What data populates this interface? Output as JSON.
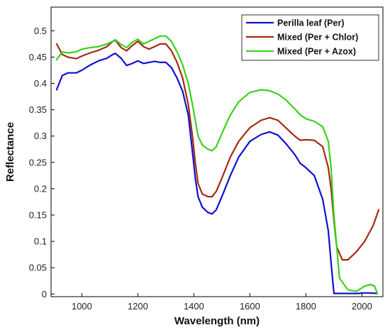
{
  "chart_data": {
    "type": "line",
    "title": "",
    "xlabel": "Wavelength (nm)",
    "ylabel": "Reflectance",
    "xlim": [
      890,
      2075
    ],
    "ylim": [
      -0.005,
      0.545
    ],
    "xticks": [
      1000,
      1200,
      1400,
      1600,
      1800,
      2000
    ],
    "yticks": [
      0,
      0.05,
      0.1,
      0.15,
      0.2,
      0.25,
      0.3,
      0.35,
      0.4,
      0.45,
      0.5
    ],
    "ytick_labels": [
      "0",
      "0.05",
      "0.1",
      "0.15",
      "0.2",
      "0.25",
      "0.3",
      "0.35",
      "0.4",
      "0.45",
      "0.5"
    ],
    "grid": false,
    "legend_position": "top-right",
    "series": [
      {
        "name": "Perilla leaf (Per)",
        "color": "#1010d0",
        "x": [
          910,
          930,
          950,
          980,
          1000,
          1030,
          1060,
          1090,
          1110,
          1120,
          1140,
          1160,
          1180,
          1200,
          1220,
          1240,
          1260,
          1280,
          1300,
          1320,
          1340,
          1360,
          1380,
          1395,
          1405,
          1415,
          1430,
          1450,
          1465,
          1480,
          1500,
          1530,
          1560,
          1600,
          1640,
          1670,
          1700,
          1730,
          1760,
          1780,
          1800,
          1830,
          1860,
          1880,
          1890,
          1900,
          1930,
          1960,
          1990,
          2000,
          2030,
          2055
        ],
        "y": [
          0.388,
          0.415,
          0.42,
          0.42,
          0.425,
          0.435,
          0.443,
          0.448,
          0.455,
          0.457,
          0.448,
          0.434,
          0.438,
          0.443,
          0.438,
          0.44,
          0.442,
          0.44,
          0.44,
          0.43,
          0.41,
          0.385,
          0.34,
          0.27,
          0.22,
          0.185,
          0.165,
          0.155,
          0.152,
          0.16,
          0.185,
          0.225,
          0.26,
          0.29,
          0.303,
          0.308,
          0.302,
          0.285,
          0.265,
          0.248,
          0.24,
          0.225,
          0.18,
          0.12,
          0.06,
          0.001,
          0.001,
          0.001,
          0.001,
          0.002,
          0.002,
          0.001
        ]
      },
      {
        "name": "Mixed (Per + Chlor)",
        "color": "#a52a10",
        "x": [
          910,
          930,
          950,
          980,
          1000,
          1030,
          1060,
          1090,
          1110,
          1120,
          1140,
          1160,
          1180,
          1200,
          1220,
          1240,
          1260,
          1280,
          1300,
          1320,
          1340,
          1360,
          1380,
          1395,
          1405,
          1415,
          1430,
          1450,
          1465,
          1480,
          1500,
          1530,
          1560,
          1600,
          1640,
          1670,
          1700,
          1730,
          1760,
          1780,
          1800,
          1830,
          1860,
          1880,
          1890,
          1900,
          1910,
          1930,
          1950,
          1980,
          2010,
          2040,
          2060
        ],
        "y": [
          0.475,
          0.455,
          0.45,
          0.447,
          0.452,
          0.458,
          0.463,
          0.47,
          0.48,
          0.482,
          0.468,
          0.462,
          0.472,
          0.48,
          0.47,
          0.465,
          0.47,
          0.475,
          0.475,
          0.462,
          0.44,
          0.41,
          0.36,
          0.3,
          0.25,
          0.21,
          0.19,
          0.185,
          0.185,
          0.195,
          0.22,
          0.26,
          0.29,
          0.316,
          0.33,
          0.335,
          0.33,
          0.315,
          0.3,
          0.292,
          0.293,
          0.292,
          0.28,
          0.24,
          0.2,
          0.14,
          0.09,
          0.065,
          0.065,
          0.08,
          0.1,
          0.13,
          0.16
        ]
      },
      {
        "name": "Mixed (Per + Azox)",
        "color": "#3ad21c",
        "x": [
          910,
          930,
          950,
          980,
          1000,
          1030,
          1060,
          1090,
          1110,
          1120,
          1140,
          1160,
          1180,
          1200,
          1220,
          1240,
          1260,
          1280,
          1300,
          1320,
          1340,
          1360,
          1380,
          1395,
          1405,
          1415,
          1430,
          1450,
          1465,
          1480,
          1500,
          1530,
          1560,
          1600,
          1640,
          1670,
          1700,
          1730,
          1760,
          1780,
          1800,
          1830,
          1860,
          1880,
          1890,
          1900,
          1920,
          1950,
          1980,
          2010,
          2030,
          2045,
          2055
        ],
        "y": [
          0.445,
          0.46,
          0.458,
          0.46,
          0.465,
          0.468,
          0.47,
          0.475,
          0.48,
          0.483,
          0.474,
          0.468,
          0.478,
          0.484,
          0.475,
          0.48,
          0.485,
          0.49,
          0.49,
          0.48,
          0.46,
          0.435,
          0.4,
          0.36,
          0.33,
          0.3,
          0.283,
          0.275,
          0.272,
          0.28,
          0.305,
          0.34,
          0.365,
          0.383,
          0.388,
          0.386,
          0.38,
          0.368,
          0.352,
          0.34,
          0.333,
          0.328,
          0.318,
          0.29,
          0.24,
          0.15,
          0.03,
          0.008,
          0.005,
          0.015,
          0.018,
          0.015,
          0.001
        ]
      }
    ]
  }
}
